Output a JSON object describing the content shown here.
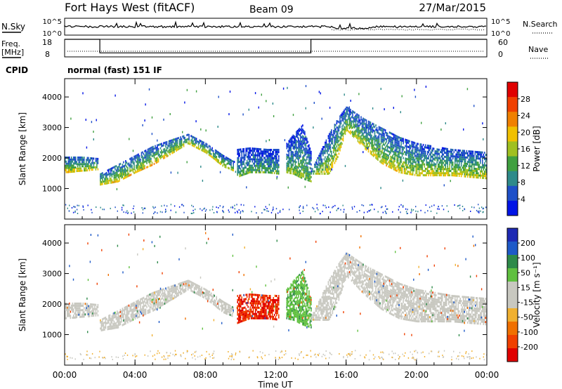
{
  "header": {
    "station": "Fort Hays West (fitACF)",
    "beam": "Beam 09",
    "date": "27/Mar/2015"
  },
  "side_labels": {
    "nsky": "N.Sky",
    "nsky_ticks": [
      "10^5",
      "10^0"
    ],
    "nsearch": "N.Search",
    "freq": "Freq.",
    "freq_unit": "[MHz]",
    "freq_ticks": [
      "18",
      "8"
    ],
    "nave_ticks": [
      "60",
      "0"
    ],
    "nave": "Nave",
    "cpid": "CPID",
    "cpid_value": "normal (fast) 151 IF"
  },
  "colors": {
    "power_scale": [
      "#0014e6",
      "#1e50c8",
      "#2e8a8a",
      "#40a040",
      "#a0c020",
      "#f0c000",
      "#f08000",
      "#f04000",
      "#e00000"
    ],
    "velocity_scale": [
      "#1e2ab4",
      "#1e5ac8",
      "#2e8a4a",
      "#60c040",
      "#c8c8c0",
      "#c8c8c0",
      "#f0b030",
      "#f07000",
      "#f04000",
      "#e00000"
    ]
  },
  "chart_data": [
    {
      "type": "heatmap",
      "panel": "power",
      "ylabel": "Slant Range [km]",
      "ylim": [
        0,
        4600
      ],
      "yticks": [
        1000,
        2000,
        3000,
        4000
      ],
      "xlim": [
        0,
        24
      ],
      "colorbar": {
        "label": "Power [dB]",
        "ticks": [
          "28",
          "24",
          "20",
          "16",
          "12",
          "8",
          "4"
        ],
        "range": [
          0,
          32
        ]
      },
      "bands": [
        {
          "name": "band-a",
          "t": [
            0,
            1,
            1.9
          ],
          "lo": [
            1500,
            1550,
            1600
          ],
          "hi": [
            2050,
            2050,
            2000
          ],
          "peak_power": 22
        },
        {
          "name": "band-b",
          "t": [
            2.0,
            3,
            4,
            5,
            6,
            7,
            8,
            9,
            9.6
          ],
          "lo": [
            1100,
            1200,
            1500,
            1750,
            2100,
            2450,
            2150,
            1700,
            1550
          ],
          "hi": [
            1500,
            1800,
            2100,
            2400,
            2600,
            2800,
            2500,
            2100,
            1900
          ],
          "peak_power": 22
        },
        {
          "name": "band-c",
          "t": [
            9.8,
            10.5,
            11.5,
            12.2
          ],
          "lo": [
            1350,
            1500,
            1500,
            1450
          ],
          "hi": [
            2300,
            2350,
            2300,
            2300
          ],
          "peak_power": 14
        },
        {
          "name": "band-d",
          "t": [
            12.6,
            13,
            13.5,
            14
          ],
          "lo": [
            1500,
            1450,
            1300,
            1200
          ],
          "hi": [
            2500,
            2800,
            3100,
            2200
          ],
          "peak_power": 16
        },
        {
          "name": "band-e",
          "t": [
            14,
            15,
            15.5,
            16,
            17,
            18,
            19,
            20,
            21,
            22,
            23,
            24
          ],
          "lo": [
            1450,
            1450,
            2000,
            2900,
            2300,
            1800,
            1500,
            1400,
            1400,
            1400,
            1350,
            1300
          ],
          "hi": [
            1600,
            2800,
            3300,
            3700,
            3300,
            3000,
            2700,
            2500,
            2400,
            2300,
            2250,
            2200
          ],
          "peak_power": 20
        }
      ]
    },
    {
      "type": "heatmap",
      "panel": "velocity",
      "ylabel": "Slant Range [km]",
      "xlabel": "Time UT",
      "ylim": [
        0,
        4600
      ],
      "yticks": [
        1000,
        2000,
        3000,
        4000
      ],
      "xlim": [
        0,
        24
      ],
      "xticks": [
        "00:00",
        "04:00",
        "08:00",
        "12:00",
        "16:00",
        "20:00",
        "00:00"
      ],
      "colorbar": {
        "label": "Velocity [m s⁻¹]",
        "ticks": [
          "200",
          "100",
          "50",
          "15",
          "-15",
          "-50",
          "-100",
          "-200"
        ],
        "range": [
          -250,
          250
        ]
      },
      "bands": [
        {
          "name": "band-a",
          "t": [
            0,
            1,
            1.9
          ],
          "lo": [
            1500,
            1550,
            1600
          ],
          "hi": [
            2050,
            2050,
            2000
          ],
          "velocity": 0
        },
        {
          "name": "band-b",
          "t": [
            2.0,
            3,
            4,
            5,
            6,
            7,
            8,
            9,
            9.6
          ],
          "lo": [
            1100,
            1200,
            1500,
            1750,
            2100,
            2450,
            2150,
            1700,
            1550
          ],
          "hi": [
            1500,
            1800,
            2100,
            2400,
            2600,
            2800,
            2500,
            2100,
            1900
          ],
          "velocity": 0
        },
        {
          "name": "band-c",
          "t": [
            9.8,
            10.5,
            11.5,
            12.2
          ],
          "lo": [
            1350,
            1500,
            1500,
            1450
          ],
          "hi": [
            2300,
            2350,
            2300,
            2300
          ],
          "velocity": -200
        },
        {
          "name": "band-d",
          "t": [
            12.6,
            13,
            13.5,
            14
          ],
          "lo": [
            1500,
            1450,
            1300,
            1200
          ],
          "hi": [
            2500,
            2800,
            3100,
            2200
          ],
          "velocity": 40
        },
        {
          "name": "band-e",
          "t": [
            14,
            15,
            15.5,
            16,
            17,
            18,
            19,
            20,
            21,
            22,
            23,
            24
          ],
          "lo": [
            1450,
            1450,
            2000,
            2900,
            2300,
            1800,
            1500,
            1400,
            1400,
            1400,
            1350,
            1300
          ],
          "hi": [
            1600,
            2800,
            3300,
            3700,
            3300,
            3000,
            2700,
            2500,
            2400,
            2300,
            2250,
            2200
          ],
          "velocity": 0
        }
      ]
    },
    {
      "type": "line",
      "panel": "frequency",
      "ylabel": "Freq. [MHz]",
      "ylim": [
        8,
        18
      ],
      "x": [
        0,
        2,
        2,
        14,
        14,
        24
      ],
      "y": [
        18,
        18,
        10.3,
        10.3,
        18,
        18
      ]
    }
  ]
}
